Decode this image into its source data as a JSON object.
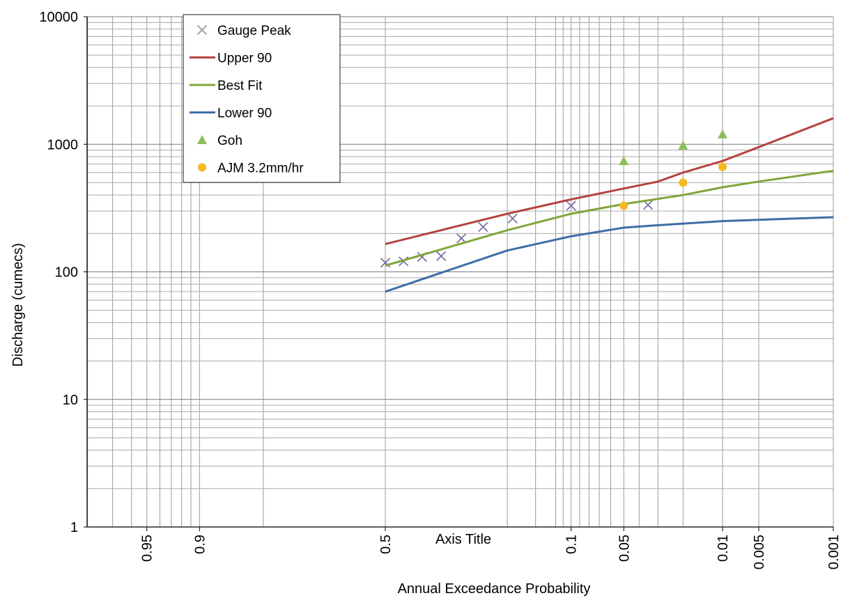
{
  "chart_data": {
    "type": "line",
    "title": "",
    "xlabel": "Annual Exceedance Probability",
    "xlabel_secondary": "Axis Title",
    "ylabel": "Discharge (cumecs)",
    "x_scale": "normal-probability",
    "y_scale": "log",
    "x_ticks": [
      "0.95",
      "0.9",
      "0.5",
      "0.1",
      "0.05",
      "0.01",
      "0.005",
      "0.001"
    ],
    "y_ticks": [
      "1",
      "10",
      "100",
      "1000",
      "10000"
    ],
    "ylim": [
      1,
      10000
    ],
    "grid": true,
    "legend_position": "top-left",
    "series": [
      {
        "name": "Gauge Peak",
        "kind": "scatter",
        "marker": "x",
        "color": "#7b6fa8",
        "points": [
          {
            "x": 0.5,
            "y": 118
          },
          {
            "x": 0.45,
            "y": 121
          },
          {
            "x": 0.4,
            "y": 131
          },
          {
            "x": 0.35,
            "y": 133
          },
          {
            "x": 0.3,
            "y": 183
          },
          {
            "x": 0.25,
            "y": 225
          },
          {
            "x": 0.19,
            "y": 262
          },
          {
            "x": 0.1,
            "y": 330
          },
          {
            "x": 0.035,
            "y": 335
          }
        ]
      },
      {
        "name": "Upper 90",
        "kind": "line",
        "color": "#b5433f",
        "points": [
          {
            "x": 0.5,
            "y": 165
          },
          {
            "x": 0.2,
            "y": 285
          },
          {
            "x": 0.1,
            "y": 370
          },
          {
            "x": 0.05,
            "y": 450
          },
          {
            "x": 0.03,
            "y": 510
          },
          {
            "x": 0.02,
            "y": 600
          },
          {
            "x": 0.01,
            "y": 740
          },
          {
            "x": 0.005,
            "y": 950
          },
          {
            "x": 0.001,
            "y": 1600
          }
        ]
      },
      {
        "name": "Best Fit",
        "kind": "line",
        "color": "#7fa63a",
        "points": [
          {
            "x": 0.5,
            "y": 112
          },
          {
            "x": 0.2,
            "y": 212
          },
          {
            "x": 0.1,
            "y": 285
          },
          {
            "x": 0.05,
            "y": 340
          },
          {
            "x": 0.02,
            "y": 400
          },
          {
            "x": 0.01,
            "y": 460
          },
          {
            "x": 0.005,
            "y": 510
          },
          {
            "x": 0.001,
            "y": 620
          }
        ]
      },
      {
        "name": "Lower 90",
        "kind": "line",
        "color": "#3d6ea8",
        "points": [
          {
            "x": 0.5,
            "y": 70
          },
          {
            "x": 0.2,
            "y": 147
          },
          {
            "x": 0.1,
            "y": 190
          },
          {
            "x": 0.05,
            "y": 222
          },
          {
            "x": 0.03,
            "y": 232
          },
          {
            "x": 0.01,
            "y": 250
          },
          {
            "x": 0.005,
            "y": 256
          },
          {
            "x": 0.001,
            "y": 268
          }
        ]
      },
      {
        "name": "Goh",
        "kind": "scatter",
        "marker": "triangle",
        "color": "#8cbf5a",
        "points": [
          {
            "x": 0.05,
            "y": 740
          },
          {
            "x": 0.02,
            "y": 980
          },
          {
            "x": 0.01,
            "y": 1200
          }
        ]
      },
      {
        "name": "AJM 3.2mm/hr",
        "kind": "scatter",
        "marker": "circle",
        "color": "#f5b921",
        "points": [
          {
            "x": 0.05,
            "y": 330
          },
          {
            "x": 0.02,
            "y": 500
          },
          {
            "x": 0.01,
            "y": 665
          }
        ]
      }
    ]
  }
}
